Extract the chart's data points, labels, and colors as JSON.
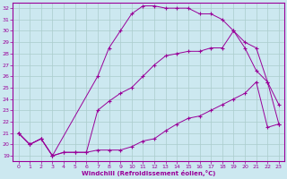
{
  "xlabel": "Windchill (Refroidissement éolien,°C)",
  "bg_color": "#cce8f0",
  "line_color": "#990099",
  "grid_color": "#aacccc",
  "xlim": [
    -0.5,
    23.5
  ],
  "ylim": [
    18.5,
    32.5
  ],
  "xticks": [
    0,
    1,
    2,
    3,
    4,
    5,
    6,
    7,
    8,
    9,
    10,
    11,
    12,
    13,
    14,
    15,
    16,
    17,
    18,
    19,
    20,
    21,
    22,
    23
  ],
  "yticks": [
    19,
    20,
    21,
    22,
    23,
    24,
    25,
    26,
    27,
    28,
    29,
    30,
    31,
    32
  ],
  "line1_x": [
    0,
    1,
    2,
    3,
    4,
    5,
    6,
    7,
    8,
    9,
    10,
    11,
    12,
    13,
    14,
    15,
    16,
    17,
    18,
    19,
    20,
    21,
    22,
    23
  ],
  "line1_y": [
    21.0,
    20.0,
    20.5,
    19.0,
    19.3,
    19.3,
    19.3,
    19.5,
    19.5,
    19.5,
    19.8,
    20.3,
    20.5,
    21.2,
    21.8,
    22.3,
    22.5,
    23.0,
    23.5,
    24.0,
    24.5,
    25.5,
    21.5,
    21.8
  ],
  "line2_x": [
    0,
    1,
    2,
    3,
    7,
    8,
    9,
    10,
    11,
    12,
    13,
    14,
    15,
    16,
    17,
    18,
    19,
    20,
    21,
    22,
    23
  ],
  "line2_y": [
    21.0,
    20.0,
    20.5,
    19.0,
    26.0,
    28.5,
    30.0,
    31.5,
    32.2,
    32.2,
    32.0,
    32.0,
    32.0,
    31.5,
    31.5,
    31.0,
    30.0,
    29.0,
    28.5,
    25.5,
    23.5
  ],
  "line3_x": [
    0,
    1,
    2,
    3,
    4,
    5,
    6,
    7,
    8,
    9,
    10,
    11,
    12,
    13,
    14,
    15,
    16,
    17,
    18,
    19,
    20,
    21,
    22,
    23
  ],
  "line3_y": [
    21.0,
    20.0,
    20.5,
    19.0,
    19.3,
    19.3,
    19.3,
    23.0,
    23.8,
    24.5,
    25.0,
    26.0,
    27.0,
    27.8,
    28.0,
    28.2,
    28.2,
    28.5,
    28.5,
    30.0,
    28.5,
    26.5,
    25.5,
    21.8
  ]
}
